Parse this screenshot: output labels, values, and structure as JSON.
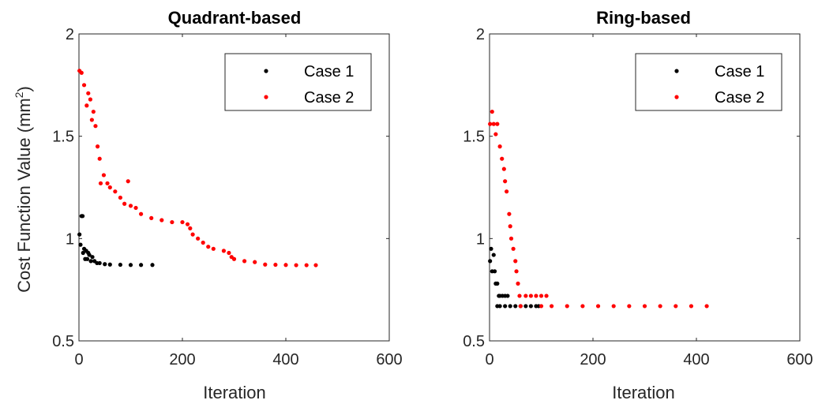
{
  "figure": {
    "ylabel": "Cost Function Value (mm",
    "ylabel_sup": "2",
    "ylabel_close": ")"
  },
  "chart_data": [
    {
      "type": "scatter",
      "title": "Quadrant-based",
      "xlabel": "Iteration",
      "ylabel": "Cost Function Value (mm²)",
      "xlim": [
        0,
        600
      ],
      "ylim": [
        0.5,
        2
      ],
      "xticks": [
        0,
        200,
        400,
        600
      ],
      "yticks": [
        0.5,
        1,
        1.5,
        2
      ],
      "legend_position": "top-right",
      "series": [
        {
          "name": "Case 1",
          "color": "#000000",
          "points": [
            [
              1,
              1.02
            ],
            [
              3,
              0.97
            ],
            [
              5,
              1.11
            ],
            [
              7,
              1.11
            ],
            [
              8,
              0.93
            ],
            [
              10,
              0.95
            ],
            [
              12,
              0.9
            ],
            [
              14,
              0.94
            ],
            [
              16,
              0.9
            ],
            [
              18,
              0.93
            ],
            [
              20,
              0.92
            ],
            [
              23,
              0.89
            ],
            [
              26,
              0.91
            ],
            [
              30,
              0.89
            ],
            [
              35,
              0.88
            ],
            [
              40,
              0.88
            ],
            [
              50,
              0.875
            ],
            [
              60,
              0.873
            ],
            [
              80,
              0.872
            ],
            [
              100,
              0.871
            ],
            [
              120,
              0.871
            ],
            [
              142,
              0.871
            ]
          ]
        },
        {
          "name": "Case 2",
          "color": "#ff0000",
          "points": [
            [
              1,
              1.82
            ],
            [
              5,
              1.81
            ],
            [
              10,
              1.75
            ],
            [
              15,
              1.65
            ],
            [
              18,
              1.71
            ],
            [
              22,
              1.68
            ],
            [
              25,
              1.58
            ],
            [
              28,
              1.62
            ],
            [
              32,
              1.55
            ],
            [
              36,
              1.45
            ],
            [
              40,
              1.39
            ],
            [
              42,
              1.27
            ],
            [
              48,
              1.31
            ],
            [
              55,
              1.27
            ],
            [
              60,
              1.25
            ],
            [
              70,
              1.23
            ],
            [
              80,
              1.2
            ],
            [
              88,
              1.17
            ],
            [
              95,
              1.28
            ],
            [
              100,
              1.16
            ],
            [
              110,
              1.15
            ],
            [
              120,
              1.12
            ],
            [
              140,
              1.1
            ],
            [
              160,
              1.09
            ],
            [
              180,
              1.08
            ],
            [
              200,
              1.08
            ],
            [
              210,
              1.07
            ],
            [
              215,
              1.05
            ],
            [
              220,
              1.02
            ],
            [
              230,
              1.0
            ],
            [
              240,
              0.98
            ],
            [
              250,
              0.96
            ],
            [
              260,
              0.95
            ],
            [
              280,
              0.94
            ],
            [
              290,
              0.93
            ],
            [
              295,
              0.91
            ],
            [
              300,
              0.9
            ],
            [
              320,
              0.89
            ],
            [
              340,
              0.885
            ],
            [
              360,
              0.873
            ],
            [
              380,
              0.872
            ],
            [
              400,
              0.871
            ],
            [
              420,
              0.87
            ],
            [
              440,
              0.87
            ],
            [
              458,
              0.87
            ]
          ]
        }
      ]
    },
    {
      "type": "scatter",
      "title": "Ring-based",
      "xlabel": "Iteration",
      "ylabel": "",
      "xlim": [
        0,
        600
      ],
      "ylim": [
        0.5,
        2
      ],
      "xticks": [
        0,
        200,
        400,
        600
      ],
      "yticks": [
        0.5,
        1,
        1.5,
        2
      ],
      "legend_position": "top-right",
      "series": [
        {
          "name": "Case 1",
          "color": "#000000",
          "points": [
            [
              1,
              0.89
            ],
            [
              3,
              0.95
            ],
            [
              5,
              0.84
            ],
            [
              8,
              0.92
            ],
            [
              10,
              0.84
            ],
            [
              12,
              0.78
            ],
            [
              15,
              0.78
            ],
            [
              18,
              0.72
            ],
            [
              20,
              0.72
            ],
            [
              25,
              0.72
            ],
            [
              30,
              0.72
            ],
            [
              35,
              0.72
            ],
            [
              15,
              0.67
            ],
            [
              20,
              0.67
            ],
            [
              30,
              0.67
            ],
            [
              40,
              0.67
            ],
            [
              50,
              0.67
            ],
            [
              60,
              0.67
            ],
            [
              70,
              0.67
            ],
            [
              80,
              0.67
            ],
            [
              90,
              0.67
            ],
            [
              95,
              0.67
            ]
          ]
        },
        {
          "name": "Case 2",
          "color": "#ff0000",
          "points": [
            [
              1,
              1.56
            ],
            [
              5,
              1.62
            ],
            [
              8,
              1.56
            ],
            [
              12,
              1.51
            ],
            [
              15,
              1.56
            ],
            [
              20,
              1.45
            ],
            [
              24,
              1.39
            ],
            [
              28,
              1.34
            ],
            [
              30,
              1.28
            ],
            [
              33,
              1.23
            ],
            [
              38,
              1.12
            ],
            [
              40,
              1.06
            ],
            [
              42,
              1.0
            ],
            [
              46,
              0.95
            ],
            [
              50,
              0.89
            ],
            [
              52,
              0.84
            ],
            [
              55,
              0.78
            ],
            [
              58,
              0.72
            ],
            [
              60,
              0.67
            ],
            [
              70,
              0.72
            ],
            [
              80,
              0.72
            ],
            [
              90,
              0.72
            ],
            [
              100,
              0.72
            ],
            [
              110,
              0.72
            ],
            [
              100,
              0.67
            ],
            [
              120,
              0.67
            ],
            [
              150,
              0.67
            ],
            [
              180,
              0.67
            ],
            [
              210,
              0.67
            ],
            [
              240,
              0.67
            ],
            [
              270,
              0.67
            ],
            [
              300,
              0.67
            ],
            [
              330,
              0.67
            ],
            [
              360,
              0.67
            ],
            [
              390,
              0.67
            ],
            [
              420,
              0.67
            ]
          ]
        }
      ]
    }
  ]
}
